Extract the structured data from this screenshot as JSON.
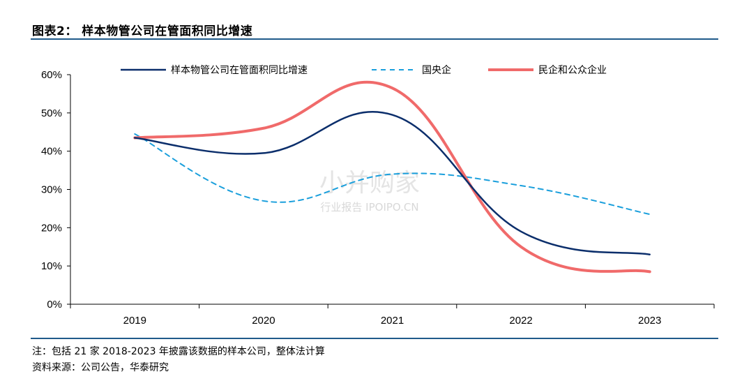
{
  "header": {
    "title": "图表2：  样本物管公司在管面积同比增速"
  },
  "watermark": {
    "main": "小并购家",
    "sub": "行业报告 IPOIPO.CN"
  },
  "footer": {
    "note": "注：包括 21 家 2018-2023 年披露该数据的样本公司，整体法计算",
    "source": "资料来源：公司公告，华泰研究"
  },
  "chart_data": {
    "type": "line",
    "x": [
      "2019",
      "2020",
      "2021",
      "2022",
      "2023"
    ],
    "ylim": [
      0,
      60
    ],
    "yticks": [
      0,
      10,
      20,
      30,
      40,
      50,
      60
    ],
    "ytick_labels": [
      "0%",
      "10%",
      "20%",
      "30%",
      "40%",
      "50%",
      "60%"
    ],
    "grid": false,
    "legend_position": "top",
    "series": [
      {
        "name": "样本物管公司在管面积同比增速",
        "values": [
          43.5,
          39.5,
          49.5,
          19.0,
          13.0
        ],
        "color": "#0b2e6b",
        "style": "solid"
      },
      {
        "name": "国央企",
        "values": [
          44.5,
          27.0,
          34.0,
          31.0,
          23.5
        ],
        "color": "#1a9fdc",
        "style": "dashed"
      },
      {
        "name": "民企和公众企业",
        "values": [
          43.5,
          46.0,
          56.5,
          15.0,
          8.5
        ],
        "color": "#f06a6a",
        "style": "solid"
      }
    ]
  }
}
